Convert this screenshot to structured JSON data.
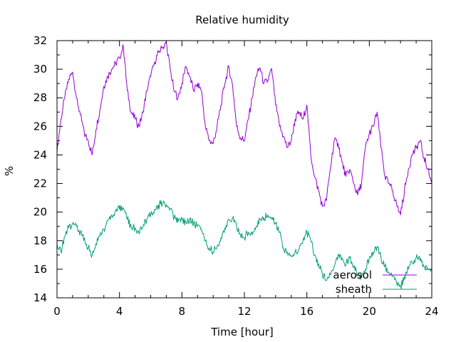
{
  "chart_data": {
    "type": "line",
    "title": "Relative humidity",
    "xlabel": "Time [hour]",
    "ylabel": "%",
    "xlim": [
      0,
      24
    ],
    "ylim": [
      14,
      32
    ],
    "xticks": [
      0,
      4,
      8,
      12,
      16,
      20,
      24
    ],
    "yticks": [
      14,
      16,
      18,
      20,
      22,
      24,
      26,
      28,
      30,
      32
    ],
    "x_minor_step": 1,
    "y_minor_step": 1,
    "grid": false,
    "legend_position": "bottom-right",
    "series": [
      {
        "name": "aerosol",
        "color": "#9400d3",
        "x": [
          0,
          0.25,
          0.5,
          0.75,
          1.0,
          1.25,
          1.5,
          1.75,
          2.0,
          2.25,
          2.5,
          2.75,
          3.0,
          3.25,
          3.5,
          3.75,
          4.0,
          4.25,
          4.5,
          4.75,
          5.0,
          5.25,
          5.5,
          5.75,
          6.0,
          6.25,
          6.5,
          6.75,
          7.0,
          7.25,
          7.5,
          7.75,
          8.0,
          8.25,
          8.5,
          8.75,
          9.0,
          9.25,
          9.5,
          9.75,
          10.0,
          10.25,
          10.5,
          10.75,
          11.0,
          11.25,
          11.5,
          11.75,
          12.0,
          12.25,
          12.5,
          12.75,
          13.0,
          13.25,
          13.5,
          13.75,
          14.0,
          14.25,
          14.5,
          14.75,
          15.0,
          15.25,
          15.5,
          15.75,
          16.0,
          16.25,
          16.5,
          16.75,
          17.0,
          17.25,
          17.5,
          17.75,
          18.0,
          18.25,
          18.5,
          18.75,
          19.0,
          19.25,
          19.5,
          19.75,
          20.0,
          20.25,
          20.5,
          20.75,
          21.0,
          21.25,
          21.5,
          21.75,
          22.0,
          22.25,
          22.5,
          22.75,
          23.0,
          23.25,
          23.5,
          23.75,
          24.0
        ],
        "y": [
          24.2,
          26.5,
          28.0,
          29.3,
          29.8,
          28.0,
          26.8,
          25.5,
          25.0,
          24.0,
          25.8,
          27.2,
          28.8,
          29.5,
          30.0,
          30.4,
          30.8,
          31.6,
          28.5,
          27.0,
          26.5,
          26.0,
          27.0,
          28.5,
          29.5,
          30.5,
          31.2,
          31.5,
          31.8,
          30.0,
          28.5,
          28.0,
          29.0,
          30.2,
          29.5,
          28.5,
          29.0,
          28.5,
          26.0,
          25.0,
          24.8,
          26.0,
          27.5,
          29.0,
          30.2,
          28.8,
          26.0,
          25.2,
          25.0,
          26.5,
          28.0,
          29.5,
          30.1,
          29.0,
          29.2,
          30.0,
          27.5,
          26.0,
          25.3,
          24.5,
          25.0,
          26.5,
          27.0,
          26.5,
          27.5,
          24.0,
          22.5,
          21.5,
          20.4,
          20.8,
          23.0,
          25.0,
          24.8,
          23.5,
          22.5,
          23.0,
          22.0,
          21.2,
          22.0,
          24.5,
          25.5,
          26.0,
          27.0,
          24.5,
          22.5,
          22.0,
          21.5,
          20.5,
          19.8,
          21.5,
          23.0,
          24.0,
          24.5,
          25.0,
          23.8,
          23.0,
          22.0
        ]
      },
      {
        "name": "sheath",
        "color": "#009e73",
        "x": [
          0,
          0.25,
          0.5,
          0.75,
          1.0,
          1.25,
          1.5,
          1.75,
          2.0,
          2.25,
          2.5,
          2.75,
          3.0,
          3.25,
          3.5,
          3.75,
          4.0,
          4.25,
          4.5,
          4.75,
          5.0,
          5.25,
          5.5,
          5.75,
          6.0,
          6.25,
          6.5,
          6.75,
          7.0,
          7.25,
          7.5,
          7.75,
          8.0,
          8.25,
          8.5,
          8.75,
          9.0,
          9.25,
          9.5,
          9.75,
          10.0,
          10.25,
          10.5,
          10.75,
          11.0,
          11.25,
          11.5,
          11.75,
          12.0,
          12.25,
          12.5,
          12.75,
          13.0,
          13.25,
          13.5,
          13.75,
          14.0,
          14.25,
          14.5,
          14.75,
          15.0,
          15.25,
          15.5,
          15.75,
          16.0,
          16.25,
          16.5,
          16.75,
          17.0,
          17.25,
          17.5,
          17.75,
          18.0,
          18.25,
          18.5,
          18.75,
          19.0,
          19.25,
          19.5,
          19.75,
          20.0,
          20.25,
          20.5,
          20.75,
          21.0,
          21.25,
          21.5,
          21.75,
          22.0,
          22.25,
          22.5,
          22.75,
          23.0,
          23.25,
          23.5,
          23.75,
          24.0
        ],
        "y": [
          17.8,
          17.2,
          18.3,
          18.9,
          19.2,
          19.0,
          18.6,
          18.2,
          17.5,
          17.0,
          17.8,
          18.3,
          18.8,
          19.4,
          19.8,
          20.1,
          20.2,
          20.3,
          19.5,
          19.0,
          18.9,
          18.5,
          19.0,
          19.5,
          19.8,
          20.2,
          20.5,
          20.6,
          20.5,
          20.2,
          19.6,
          19.3,
          19.5,
          19.3,
          19.5,
          19.2,
          19.0,
          18.8,
          18.0,
          17.5,
          17.2,
          17.6,
          18.2,
          18.9,
          19.5,
          19.6,
          19.0,
          18.4,
          18.2,
          18.6,
          18.4,
          19.0,
          19.5,
          19.6,
          19.8,
          19.5,
          19.2,
          18.6,
          17.5,
          17.2,
          16.9,
          17.2,
          17.4,
          18.0,
          18.6,
          18.0,
          17.0,
          16.4,
          15.6,
          15.2,
          15.6,
          16.2,
          17.0,
          16.8,
          16.3,
          16.8,
          16.2,
          15.6,
          15.4,
          16.0,
          16.8,
          17.2,
          17.6,
          16.8,
          16.2,
          15.8,
          15.5,
          15.0,
          14.8,
          15.5,
          16.0,
          16.5,
          16.8,
          16.6,
          16.2,
          16.0,
          15.9
        ]
      }
    ]
  }
}
